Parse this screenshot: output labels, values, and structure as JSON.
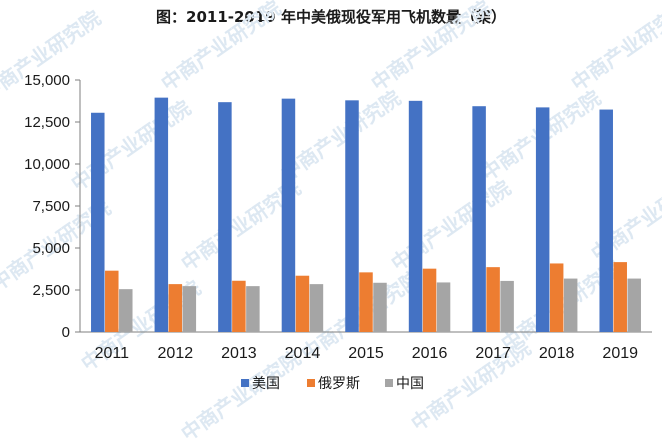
{
  "chart_data": {
    "type": "bar",
    "title": "图：2011-2019 年中美俄现役军用飞机数量（架）",
    "xlabel": "",
    "ylabel": "",
    "categories": [
      "2011",
      "2012",
      "2013",
      "2014",
      "2015",
      "2016",
      "2017",
      "2018",
      "2019"
    ],
    "series": [
      {
        "name": "美国",
        "color": "#4472C4",
        "values": [
          13050,
          13950,
          13680,
          13890,
          13790,
          13760,
          13440,
          13370,
          13240
        ]
      },
      {
        "name": "俄罗斯",
        "color": "#ED7D31",
        "values": [
          3650,
          2850,
          3050,
          3350,
          3550,
          3770,
          3860,
          4080,
          4160
        ]
      },
      {
        "name": "中国",
        "color": "#A5A5A5",
        "values": [
          2550,
          2730,
          2730,
          2850,
          2930,
          2950,
          3040,
          3180,
          3180
        ]
      }
    ],
    "ylim": [
      0,
      15000
    ],
    "yticks": [
      "0",
      "2,500",
      "5,000",
      "7,500",
      "10,000",
      "12,500",
      "15,000"
    ],
    "ytick_values": [
      0,
      2500,
      5000,
      7500,
      10000,
      12500,
      15000
    ],
    "grid": false,
    "legend_position": "bottom"
  },
  "watermark_text": "中商产业研究院"
}
